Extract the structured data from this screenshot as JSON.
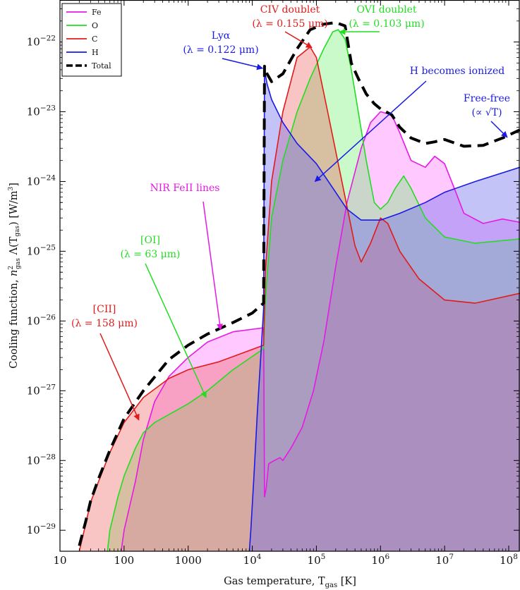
{
  "chart_data": {
    "type": "area",
    "title": "",
    "xlabel": "Gas temperature, T_gas [K]",
    "ylabel": "Cooling function, n_gas² Λ(T_gas) [W/m³]",
    "x_scale": "log",
    "y_scale": "log",
    "xlim": [
      10,
      150000000
    ],
    "ylim": [
      5e-30,
      4e-22
    ],
    "x_ticks": [
      {
        "value": 10,
        "label": "10"
      },
      {
        "value": 100,
        "label": "100"
      },
      {
        "value": 1000,
        "label": "1000"
      },
      {
        "value": 10000,
        "label": "10⁴"
      },
      {
        "value": 100000,
        "label": "10⁵"
      },
      {
        "value": 1000000,
        "label": "10⁶"
      },
      {
        "value": 10000000,
        "label": "10⁷"
      },
      {
        "value": 100000000,
        "label": "10⁸"
      }
    ],
    "y_ticks": [
      {
        "value": 1e-29,
        "label": "10⁻²⁹"
      },
      {
        "value": 1e-28,
        "label": "10⁻²⁸"
      },
      {
        "value": 1e-27,
        "label": "10⁻²⁷"
      },
      {
        "value": 1e-26,
        "label": "10⁻²⁶"
      },
      {
        "value": 1e-25,
        "label": "10⁻²⁵"
      },
      {
        "value": 1e-24,
        "label": "10⁻²⁴"
      },
      {
        "value": 1e-23,
        "label": "10⁻²³"
      },
      {
        "value": 1e-22,
        "label": "10⁻²²"
      }
    ],
    "series": [
      {
        "name": "Fe",
        "color": "#e619e6",
        "fill": "#ff77ff",
        "fill_opacity": 0.4,
        "points": [
          [
            90,
            5e-30
          ],
          [
            100,
            1e-29
          ],
          [
            150,
            5e-29
          ],
          [
            200,
            2e-28
          ],
          [
            300,
            7e-28
          ],
          [
            500,
            1.6e-27
          ],
          [
            1000,
            3e-27
          ],
          [
            2000,
            5e-27
          ],
          [
            5000,
            7e-27
          ],
          [
            15000,
            8e-27
          ],
          [
            15500,
            3e-29
          ],
          [
            16500,
            4e-29
          ],
          [
            18000,
            9e-29
          ],
          [
            22000,
            1e-28
          ],
          [
            27000,
            1.1e-28
          ],
          [
            30000,
            1e-28
          ],
          [
            40000,
            1.5e-28
          ],
          [
            60000,
            3e-28
          ],
          [
            90000,
            1e-27
          ],
          [
            130000,
            5e-27
          ],
          [
            200000,
            6e-26
          ],
          [
            300000,
            5e-25
          ],
          [
            500000,
            3e-24
          ],
          [
            700000,
            7e-24
          ],
          [
            1000000,
            1e-23
          ],
          [
            1500000,
            9e-24
          ],
          [
            2000000,
            5e-24
          ],
          [
            3000000,
            2e-24
          ],
          [
            5000000,
            1.6e-24
          ],
          [
            7000000,
            2.3e-24
          ],
          [
            10000000,
            1.8e-24
          ],
          [
            15000000,
            7e-25
          ],
          [
            20000000,
            3.5e-25
          ],
          [
            40000000,
            2.5e-25
          ],
          [
            80000000,
            2.9e-25
          ],
          [
            150000000,
            2.6e-25
          ]
        ]
      },
      {
        "name": "O",
        "color": "#22dd22",
        "fill": "#66ee66",
        "fill_opacity": 0.35,
        "points": [
          [
            55,
            5e-30
          ],
          [
            60,
            1e-29
          ],
          [
            80,
            3e-29
          ],
          [
            100,
            6e-29
          ],
          [
            150,
            1.5e-28
          ],
          [
            200,
            2.5e-28
          ],
          [
            300,
            3.5e-28
          ],
          [
            600,
            5e-28
          ],
          [
            1000,
            6.5e-28
          ],
          [
            2000,
            1e-27
          ],
          [
            5000,
            2e-27
          ],
          [
            15000,
            4e-27
          ],
          [
            16000,
            2e-26
          ],
          [
            20000,
            3e-25
          ],
          [
            30000,
            2e-24
          ],
          [
            50000,
            1e-23
          ],
          [
            80000,
            3e-23
          ],
          [
            130000,
            8e-23
          ],
          [
            180000,
            1.4e-22
          ],
          [
            220000,
            1.5e-22
          ],
          [
            280000,
            1.1e-22
          ],
          [
            350000,
            4e-23
          ],
          [
            450000,
            1e-23
          ],
          [
            600000,
            2e-24
          ],
          [
            800000,
            5e-25
          ],
          [
            1000000,
            4e-25
          ],
          [
            1300000,
            5e-25
          ],
          [
            1700000,
            8e-25
          ],
          [
            2300000,
            1.2e-24
          ],
          [
            3000000,
            8e-25
          ],
          [
            5000000,
            3e-25
          ],
          [
            10000000,
            1.6e-25
          ],
          [
            30000000,
            1.3e-25
          ],
          [
            150000000,
            1.5e-25
          ]
        ]
      },
      {
        "name": "C",
        "color": "#e01b1b",
        "fill": "#ee5555",
        "fill_opacity": 0.35,
        "points": [
          [
            20,
            5e-30
          ],
          [
            25,
            1.2e-29
          ],
          [
            30,
            2.5e-29
          ],
          [
            40,
            5e-29
          ],
          [
            60,
            1.3e-28
          ],
          [
            100,
            3.5e-28
          ],
          [
            200,
            8e-28
          ],
          [
            500,
            1.5e-27
          ],
          [
            1000,
            2e-27
          ],
          [
            3000,
            2.6e-27
          ],
          [
            15000,
            4.5e-27
          ],
          [
            16000,
            5e-26
          ],
          [
            20000,
            1e-24
          ],
          [
            30000,
            1e-23
          ],
          [
            50000,
            6e-23
          ],
          [
            80000,
            8.5e-23
          ],
          [
            100000,
            6e-23
          ],
          [
            150000,
            1e-23
          ],
          [
            250000,
            1e-24
          ],
          [
            400000,
            1.2e-25
          ],
          [
            500000,
            7e-26
          ],
          [
            700000,
            1.3e-25
          ],
          [
            1000000,
            3e-25
          ],
          [
            1300000,
            2.5e-25
          ],
          [
            2000000,
            1e-25
          ],
          [
            4000000,
            4e-26
          ],
          [
            10000000,
            2e-26
          ],
          [
            30000000,
            1.8e-26
          ],
          [
            150000000,
            2.5e-26
          ]
        ]
      },
      {
        "name": "H",
        "color": "#1a1ae6",
        "fill": "#6a6aee",
        "fill_opacity": 0.4,
        "points": [
          [
            9000,
            5e-30
          ],
          [
            9500,
            1e-29
          ],
          [
            10500,
            5e-29
          ],
          [
            12000,
            5e-28
          ],
          [
            14000,
            5e-27
          ],
          [
            15000,
            1.5e-26
          ],
          [
            15500,
            4e-23
          ],
          [
            17000,
            2.5e-23
          ],
          [
            20000,
            1.5e-23
          ],
          [
            30000,
            7e-24
          ],
          [
            50000,
            3.5e-24
          ],
          [
            100000,
            1.8e-24
          ],
          [
            200000,
            7e-25
          ],
          [
            300000,
            4e-25
          ],
          [
            500000,
            2.8e-25
          ],
          [
            1000000,
            2.8e-25
          ],
          [
            2000000,
            3.5e-25
          ],
          [
            5000000,
            5e-25
          ],
          [
            10000000,
            7e-25
          ],
          [
            30000000,
            1e-24
          ],
          [
            150000000,
            1.6e-24
          ]
        ]
      },
      {
        "name": "Total",
        "color": "#000000",
        "dashed": true,
        "points": [
          [
            20,
            6e-30
          ],
          [
            25,
            1.3e-29
          ],
          [
            30,
            2.6e-29
          ],
          [
            40,
            5.5e-29
          ],
          [
            60,
            1.4e-28
          ],
          [
            100,
            4e-28
          ],
          [
            200,
            1e-27
          ],
          [
            500,
            2.8e-27
          ],
          [
            1000,
            4.5e-27
          ],
          [
            2000,
            6.5e-27
          ],
          [
            5000,
            9.5e-27
          ],
          [
            10000,
            1.3e-26
          ],
          [
            15000,
            1.8e-26
          ],
          [
            15500,
            4.5e-23
          ],
          [
            16000,
            4.2e-23
          ],
          [
            17000,
            3.5e-23
          ],
          [
            20000,
            2.7e-23
          ],
          [
            30000,
            3.5e-23
          ],
          [
            50000,
            8e-23
          ],
          [
            80000,
            1.5e-22
          ],
          [
            130000,
            1.8e-22
          ],
          [
            200000,
            1.9e-22
          ],
          [
            280000,
            1.7e-22
          ],
          [
            350000,
            5e-23
          ],
          [
            450000,
            3e-23
          ],
          [
            600000,
            1.8e-23
          ],
          [
            800000,
            1.3e-23
          ],
          [
            1000000,
            1.1e-23
          ],
          [
            1500000,
            9e-24
          ],
          [
            2000000,
            6e-24
          ],
          [
            3000000,
            4.2e-24
          ],
          [
            5000000,
            3.5e-24
          ],
          [
            7000000,
            3.7e-24
          ],
          [
            10000000,
            4e-24
          ],
          [
            20000000,
            3.2e-24
          ],
          [
            40000000,
            3.3e-24
          ],
          [
            80000000,
            4.2e-24
          ],
          [
            150000000,
            5.5e-24
          ]
        ]
      }
    ],
    "legend": {
      "position": "top-left",
      "entries": [
        {
          "label": "Fe",
          "color": "#e619e6"
        },
        {
          "label": "O",
          "color": "#22dd22"
        },
        {
          "label": "C",
          "color": "#e01b1b"
        },
        {
          "label": "H",
          "color": "#1a1ae6"
        },
        {
          "label": "Total",
          "color": "#000000",
          "dashed": true
        }
      ]
    },
    "annotations": [
      {
        "lines": [
          "[CII]",
          "(λ = 158 μm)"
        ],
        "color": "#e01b1b",
        "target": [
          170,
          3.8e-28
        ]
      },
      {
        "lines": [
          "[OI]",
          "(λ = 63 μm)"
        ],
        "color": "#22dd22",
        "target": [
          1900,
          8e-28
        ]
      },
      {
        "lines": [
          "NIR FeII lines"
        ],
        "color": "#e619e6",
        "target": [
          3200,
          7.5e-27
        ]
      },
      {
        "lines": [
          "Lyα",
          "(λ = 0.122 μm)"
        ],
        "color": "#1a1ae6",
        "target": [
          14500,
          4.2e-23
        ]
      },
      {
        "lines": [
          "CIV doublet",
          "(λ = 0.155 μm)"
        ],
        "color": "#e01b1b",
        "target": [
          85000,
          8.3e-23
        ]
      },
      {
        "lines": [
          "OVI doublet",
          "(λ = 0.103 μm)"
        ],
        "color": "#22dd22",
        "target": [
          230000,
          1.4e-22
        ]
      },
      {
        "lines": [
          "H becomes ionized"
        ],
        "color": "#1a1ae6",
        "target": [
          95000,
          1e-24
        ]
      },
      {
        "lines": [
          "Free-free",
          "(∝ √T)"
        ],
        "color": "#1a1ae6",
        "target": [
          95000000,
          4.3e-24
        ]
      }
    ]
  }
}
